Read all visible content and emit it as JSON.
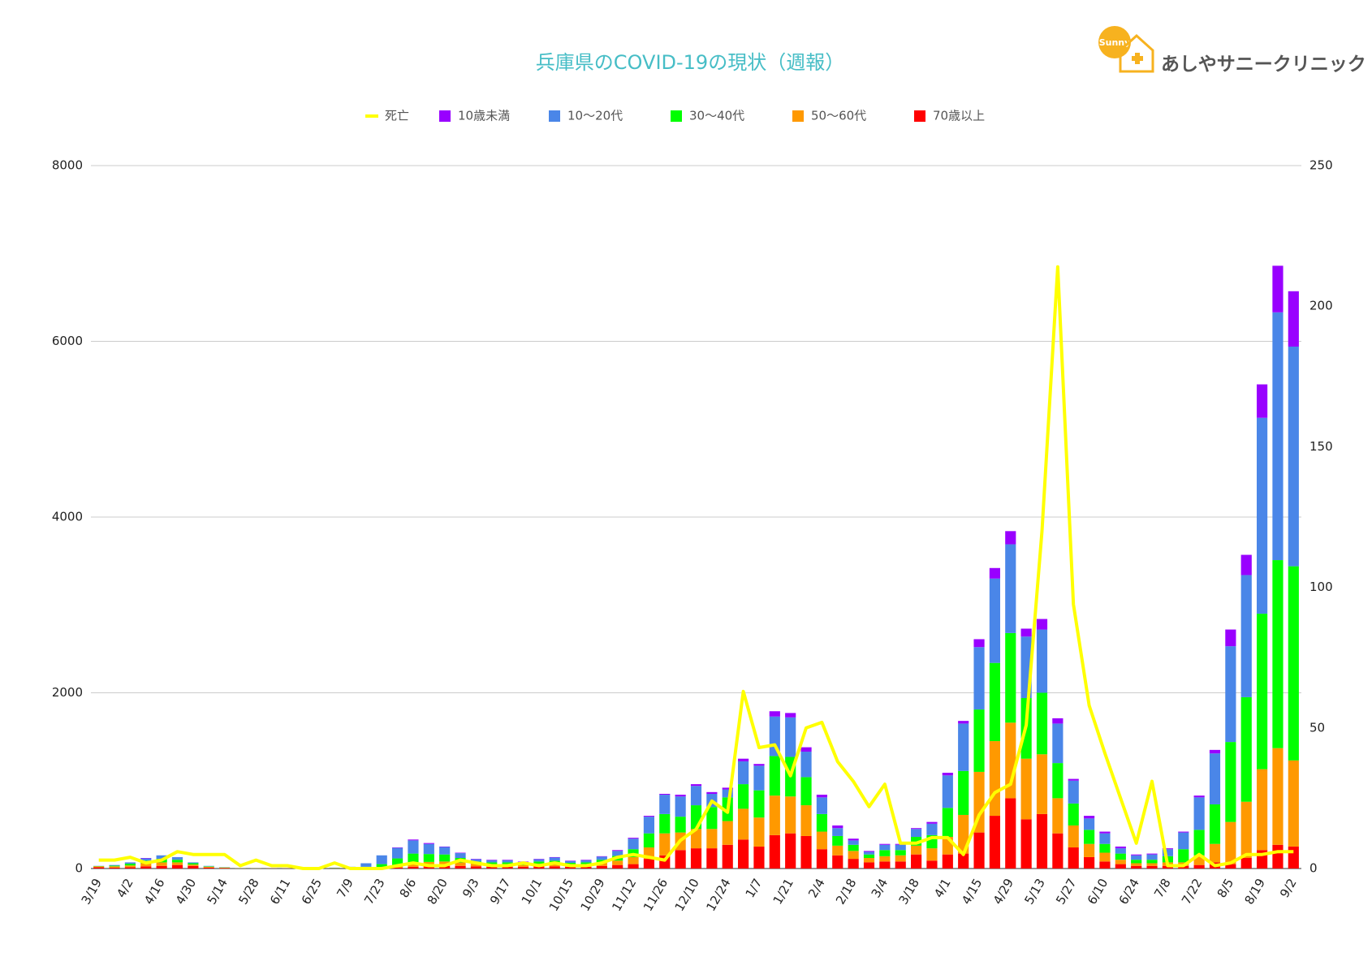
{
  "logo": {
    "text": "あしやサニークリニック",
    "badge": "Sunny"
  },
  "chart_data": {
    "type": "stacked-bar-line",
    "title": "兵庫県のCOVID-19の現状（週報）",
    "categories": [
      "3/19",
      null,
      "4/2",
      null,
      "4/16",
      null,
      "4/30",
      null,
      "5/14",
      null,
      "5/28",
      null,
      "6/11",
      null,
      "6/25",
      null,
      "7/9",
      null,
      "7/23",
      null,
      "8/6",
      null,
      "8/20",
      null,
      "9/3",
      null,
      "9/17",
      null,
      "10/1",
      null,
      "10/15",
      null,
      "10/29",
      null,
      "11/12",
      null,
      "11/26",
      null,
      "12/10",
      null,
      "12/24",
      null,
      "1/7",
      null,
      "1/21",
      null,
      "2/4",
      null,
      "2/18",
      null,
      "3/4",
      null,
      "3/18",
      null,
      "4/1",
      null,
      "4/15",
      null,
      "4/29",
      null,
      "5/13",
      null,
      "5/27",
      null,
      "6/10",
      null,
      "6/24",
      null,
      "7/8",
      null,
      "7/22",
      null,
      "8/5",
      null,
      "8/19",
      null,
      "9/2"
    ],
    "series": [
      {
        "name": "死亡",
        "color": "#ffff00",
        "kind": "line",
        "axis": "y2",
        "values": [
          3,
          3,
          4,
          2,
          3,
          6,
          5,
          5,
          5,
          1,
          3,
          1,
          1,
          0,
          0,
          2,
          0,
          0,
          0,
          1,
          2,
          1,
          1,
          3,
          2,
          1,
          1,
          2,
          1,
          2,
          1,
          1,
          2,
          4,
          5,
          4,
          3,
          10,
          14,
          24,
          20,
          63,
          43,
          44,
          33,
          50,
          52,
          38,
          31,
          22,
          30,
          9,
          9,
          11,
          11,
          5,
          19,
          27,
          30,
          51,
          120,
          214,
          94,
          58,
          41,
          25,
          9,
          31,
          1,
          1,
          5,
          1,
          2,
          5,
          5,
          6,
          6
        ]
      },
      {
        "name": "10歳未満",
        "color": "#9900ff",
        "kind": "bar",
        "values": [
          0,
          0,
          0,
          5,
          0,
          0,
          0,
          0,
          0,
          0,
          0,
          0,
          0,
          0,
          0,
          0,
          0,
          0,
          0,
          5,
          10,
          10,
          5,
          5,
          5,
          5,
          5,
          5,
          5,
          5,
          5,
          5,
          5,
          10,
          10,
          10,
          10,
          20,
          20,
          20,
          20,
          30,
          20,
          60,
          50,
          50,
          30,
          30,
          20,
          10,
          10,
          10,
          10,
          20,
          30,
          30,
          90,
          120,
          150,
          90,
          120,
          60,
          20,
          30,
          20,
          20,
          10,
          10,
          10,
          10,
          20,
          40,
          190,
          230,
          380,
          530,
          630
        ]
      },
      {
        "name": "10〜20代",
        "color": "#4a86e8",
        "kind": "bar",
        "values": [
          2,
          7,
          15,
          25,
          40,
          30,
          10,
          5,
          2,
          1,
          0,
          0,
          0,
          0,
          1,
          3,
          8,
          40,
          100,
          120,
          150,
          115,
          85,
          55,
          25,
          25,
          25,
          15,
          25,
          35,
          20,
          25,
          35,
          55,
          120,
          190,
          220,
          230,
          220,
          150,
          90,
          260,
          280,
          450,
          450,
          290,
          190,
          90,
          50,
          30,
          60,
          60,
          90,
          130,
          370,
          540,
          710,
          960,
          1010,
          700,
          720,
          450,
          260,
          130,
          120,
          60,
          50,
          60,
          80,
          190,
          370,
          580,
          1090,
          1390,
          2230,
          2820,
          2500
        ]
      },
      {
        "name": "30〜40代",
        "color": "#00ff00",
        "kind": "bar",
        "values": [
          3,
          8,
          20,
          30,
          40,
          30,
          15,
          5,
          3,
          1,
          1,
          0,
          0,
          1,
          1,
          3,
          6,
          12,
          35,
          80,
          100,
          90,
          80,
          50,
          25,
          25,
          25,
          20,
          25,
          35,
          25,
          25,
          35,
          55,
          90,
          160,
          220,
          180,
          270,
          250,
          270,
          280,
          310,
          450,
          450,
          320,
          200,
          110,
          70,
          40,
          70,
          60,
          100,
          150,
          330,
          500,
          710,
          890,
          1020,
          690,
          700,
          400,
          250,
          160,
          100,
          70,
          40,
          40,
          70,
          150,
          290,
          450,
          910,
          1190,
          1770,
          2140,
          2210
        ]
      },
      {
        "name": "50〜60代",
        "color": "#ff9900",
        "kind": "bar",
        "values": [
          10,
          15,
          20,
          35,
          40,
          30,
          15,
          10,
          5,
          1,
          1,
          1,
          1,
          1,
          2,
          2,
          3,
          5,
          10,
          25,
          50,
          50,
          50,
          40,
          30,
          25,
          25,
          20,
          30,
          30,
          20,
          25,
          35,
          50,
          80,
          130,
          250,
          200,
          220,
          220,
          270,
          350,
          330,
          450,
          420,
          350,
          200,
          110,
          90,
          50,
          60,
          70,
          100,
          140,
          200,
          440,
          690,
          850,
          860,
          690,
          680,
          400,
          250,
          150,
          100,
          50,
          30,
          30,
          40,
          40,
          110,
          210,
          480,
          640,
          920,
          1100,
          980
        ]
      },
      {
        "name": "70歳以上",
        "color": "#ff0000",
        "kind": "bar",
        "values": [
          15,
          10,
          15,
          25,
          30,
          40,
          30,
          10,
          5,
          2,
          1,
          1,
          1,
          1,
          1,
          2,
          3,
          3,
          5,
          10,
          20,
          25,
          30,
          30,
          25,
          20,
          20,
          20,
          25,
          25,
          20,
          20,
          30,
          40,
          50,
          110,
          150,
          210,
          230,
          230,
          270,
          330,
          250,
          380,
          400,
          370,
          220,
          150,
          110,
          70,
          80,
          80,
          160,
          90,
          160,
          170,
          410,
          600,
          800,
          560,
          620,
          400,
          240,
          130,
          80,
          50,
          30,
          30,
          30,
          30,
          40,
          70,
          50,
          120,
          210,
          270,
          250
        ]
      }
    ],
    "ylim": [
      0,
      8000
    ],
    "yticks": [
      0,
      2000,
      4000,
      6000,
      8000
    ],
    "y2lim": [
      0,
      250
    ],
    "y2ticks": [
      0,
      50,
      100,
      150,
      200,
      250
    ],
    "grid": true,
    "legend": "top"
  }
}
